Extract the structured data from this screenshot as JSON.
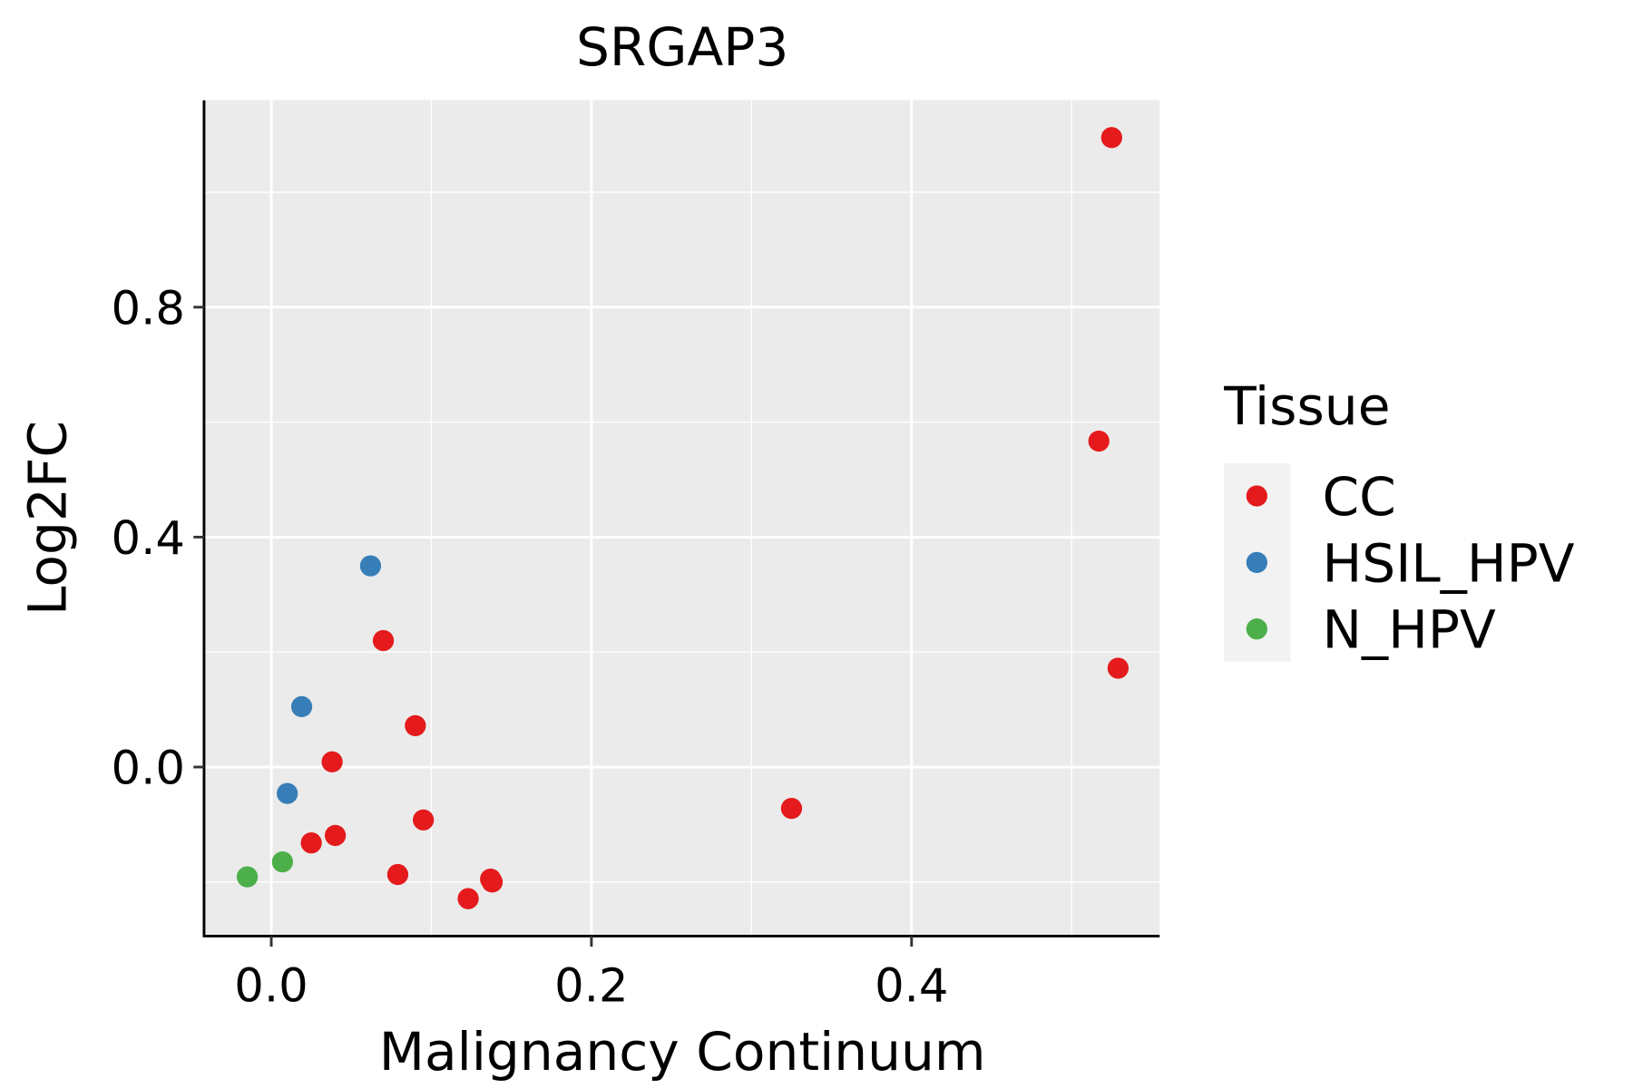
{
  "chart_data": {
    "type": "scatter",
    "title": "SRGAP3",
    "xlabel": "Malignancy Continuum",
    "ylabel": "Log2FC",
    "xlim": [
      -0.042,
      0.555
    ],
    "ylim": [
      -0.294,
      1.16
    ],
    "x_ticks": [
      0.0,
      0.2,
      0.4
    ],
    "x_tick_labels": [
      "0.0",
      "0.2",
      "0.4"
    ],
    "y_ticks": [
      0.0,
      0.4,
      0.8
    ],
    "y_tick_labels": [
      "0.0",
      "0.4",
      "0.8"
    ],
    "grid": true,
    "legend": {
      "title": "Tissue",
      "placement": "right",
      "entries": [
        {
          "label": "CC",
          "color": "#E41A1C"
        },
        {
          "label": "HSIL_HPV",
          "color": "#377EB8"
        },
        {
          "label": "N_HPV",
          "color": "#4DAF4A"
        }
      ]
    },
    "series": [
      {
        "name": "CC",
        "color": "#E41A1C",
        "points": [
          [
            0.525,
            1.095
          ],
          [
            0.517,
            0.567
          ],
          [
            0.529,
            0.172
          ],
          [
            0.325,
            -0.072
          ],
          [
            0.07,
            0.22
          ],
          [
            0.09,
            0.072
          ],
          [
            0.038,
            0.009
          ],
          [
            0.095,
            -0.092
          ],
          [
            0.04,
            -0.119
          ],
          [
            0.025,
            -0.132
          ],
          [
            0.079,
            -0.187
          ],
          [
            0.137,
            -0.195
          ],
          [
            0.138,
            -0.2
          ],
          [
            0.123,
            -0.229
          ]
        ]
      },
      {
        "name": "HSIL_HPV",
        "color": "#377EB8",
        "points": [
          [
            0.062,
            0.35
          ],
          [
            0.019,
            0.105
          ],
          [
            0.01,
            -0.046
          ]
        ]
      },
      {
        "name": "N_HPV",
        "color": "#4DAF4A",
        "points": [
          [
            0.007,
            -0.165
          ],
          [
            -0.015,
            -0.191
          ]
        ]
      }
    ]
  }
}
